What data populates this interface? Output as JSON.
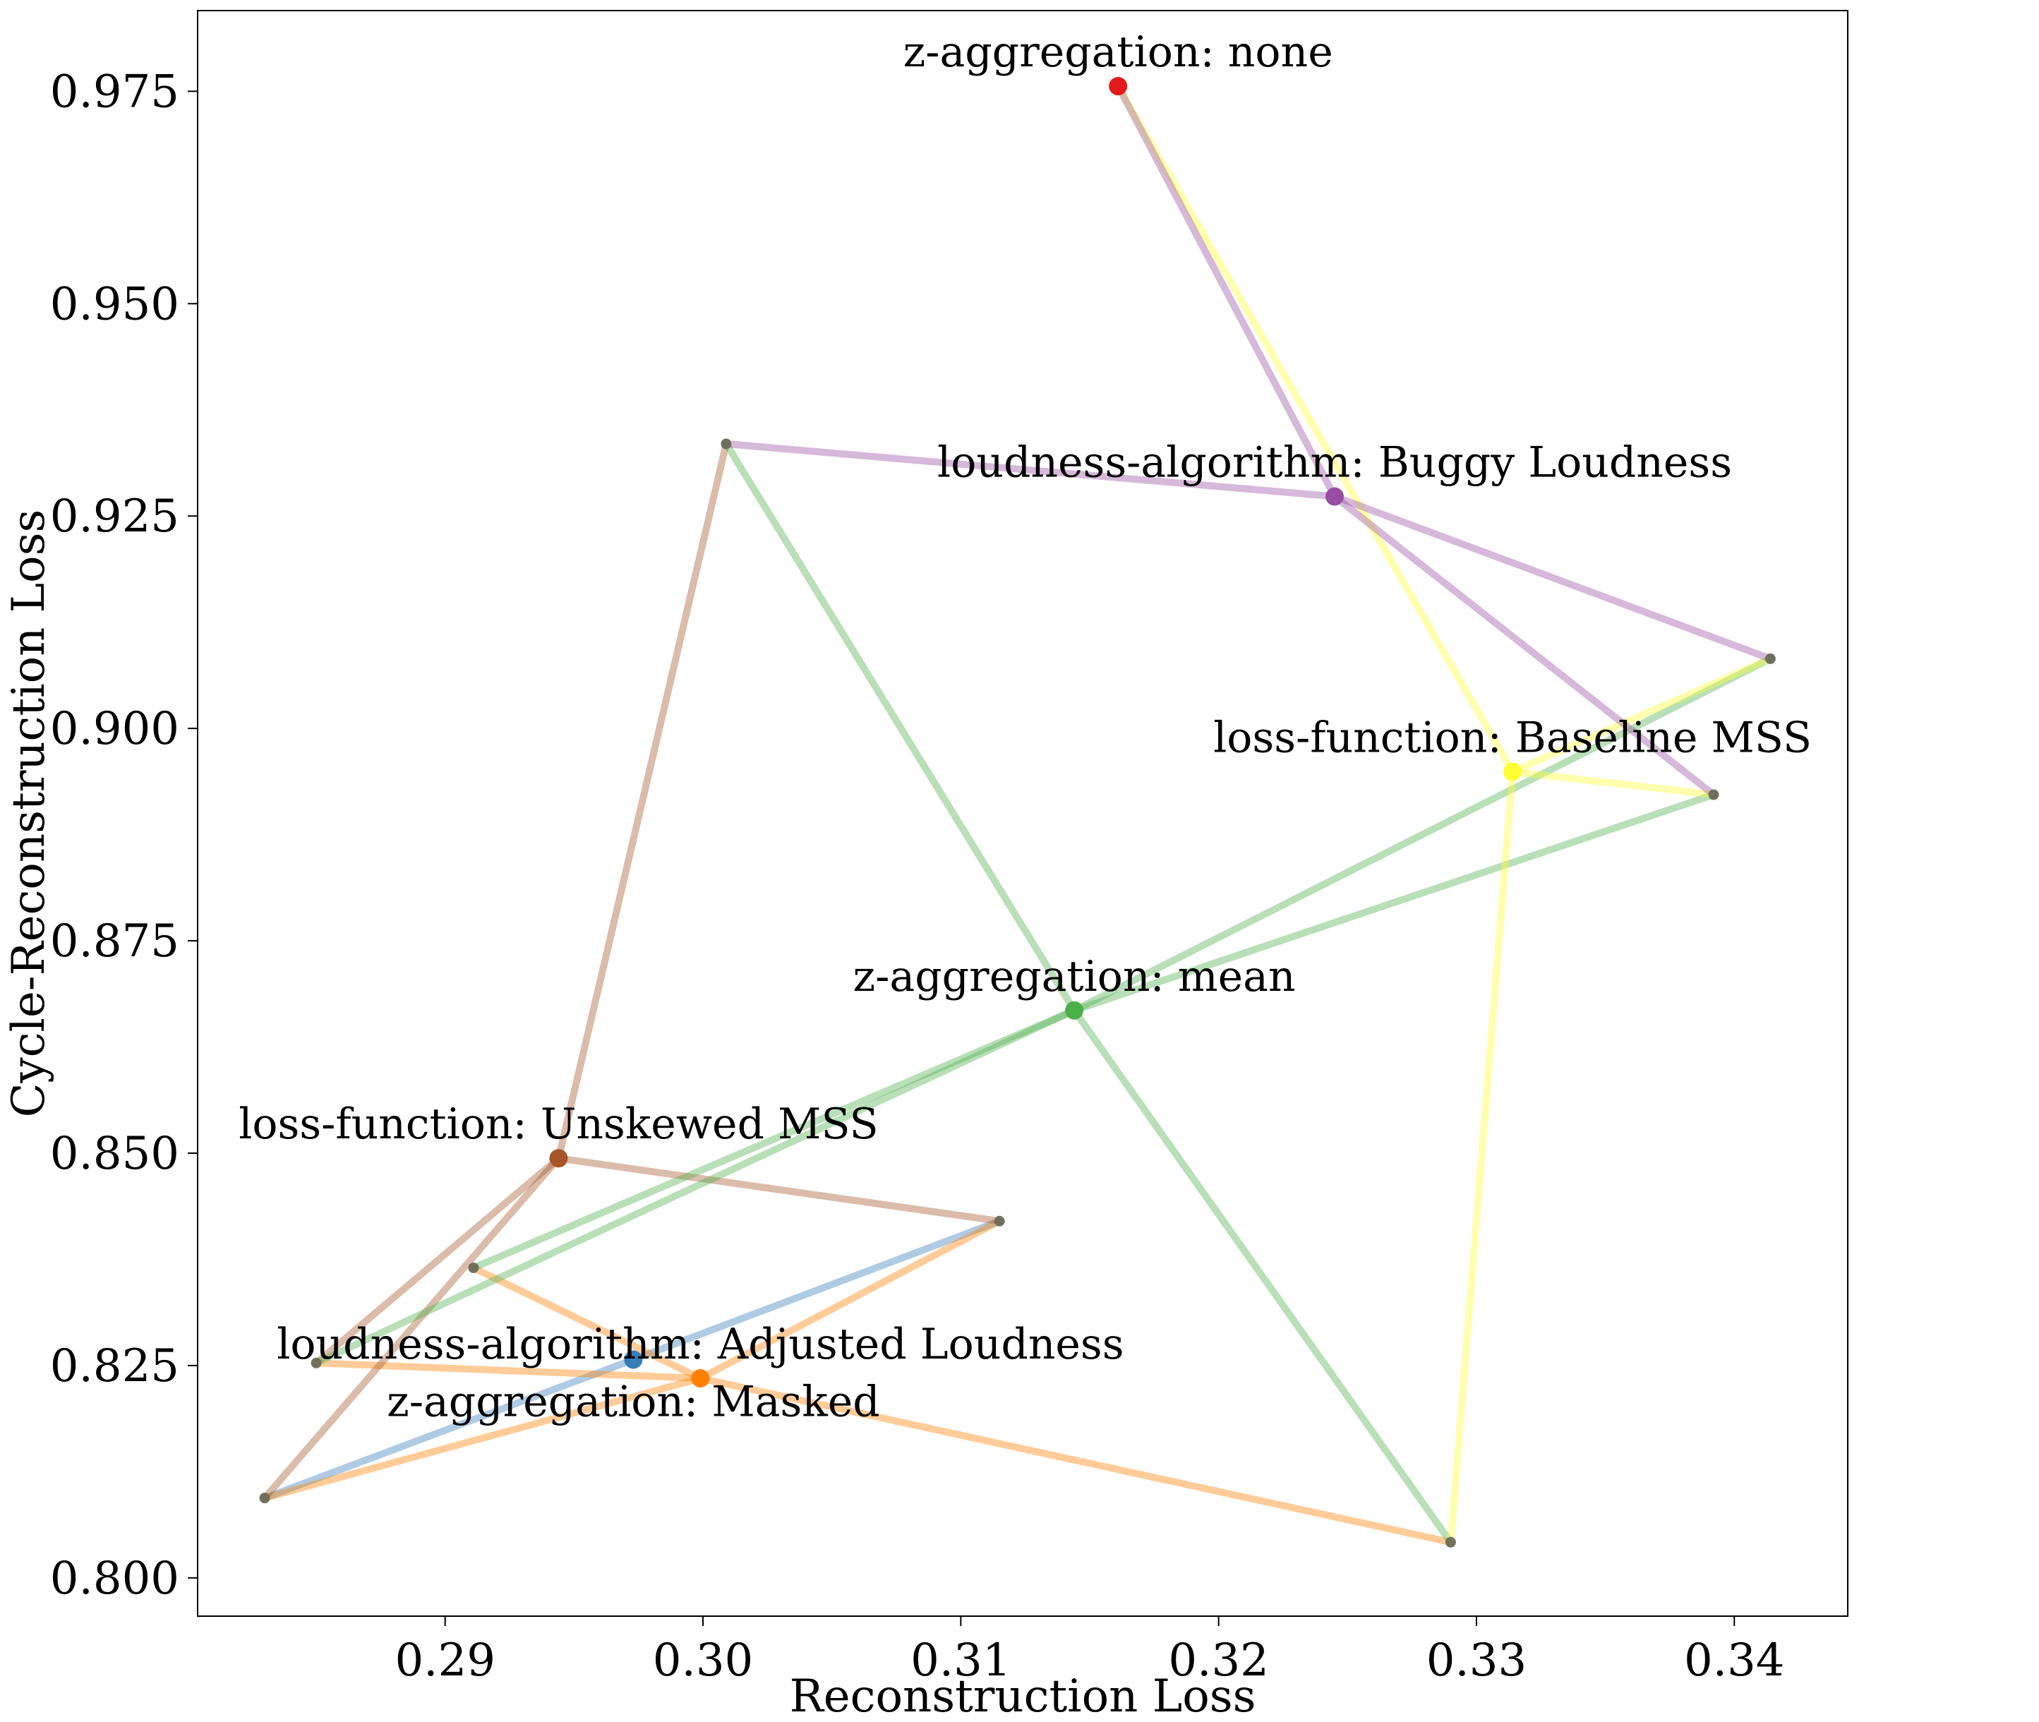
{
  "chart_data": {
    "type": "scatter",
    "title": "",
    "xlabel": "Reconstruction Loss",
    "ylabel": "Cycle-Reconstruction Loss",
    "xlim": [
      0.2804,
      0.3444
    ],
    "ylim": [
      0.7955,
      0.9845
    ],
    "x_ticks": [
      0.29,
      0.3,
      0.31,
      0.32,
      0.33,
      0.34
    ],
    "x_tick_labels": [
      "0.29",
      "0.30",
      "0.31",
      "0.32",
      "0.33",
      "0.34"
    ],
    "y_ticks": [
      0.8,
      0.825,
      0.85,
      0.875,
      0.9,
      0.925,
      0.95,
      0.975
    ],
    "y_tick_labels": [
      "0.800",
      "0.825",
      "0.850",
      "0.875",
      "0.900",
      "0.925",
      "0.950",
      "0.975"
    ],
    "grid": false,
    "legend": "none",
    "points": [
      {
        "x": 0.283,
        "y": 0.8094
      },
      {
        "x": 0.285,
        "y": 0.8253
      },
      {
        "x": 0.2911,
        "y": 0.8365
      },
      {
        "x": 0.3009,
        "y": 0.9335
      },
      {
        "x": 0.3115,
        "y": 0.842
      },
      {
        "x": 0.329,
        "y": 0.8042
      },
      {
        "x": 0.3392,
        "y": 0.8922
      },
      {
        "x": 0.3414,
        "y": 0.9082
      }
    ],
    "series": [
      {
        "label": "z-aggregation: Masked",
        "color": "#377eb8",
        "x": 0.2973,
        "y": 0.8257,
        "neighbors": [
          {
            "x": 0.283,
            "y": 0.8094
          },
          {
            "x": 0.3115,
            "y": 0.842
          }
        ],
        "label_anchor": "below"
      },
      {
        "label": "loudness-algorithm: Adjusted Loudness",
        "color": "#ff7f00",
        "x": 0.2999,
        "y": 0.8235,
        "neighbors": [
          {
            "x": 0.283,
            "y": 0.8094
          },
          {
            "x": 0.285,
            "y": 0.8253
          },
          {
            "x": 0.2911,
            "y": 0.8365
          },
          {
            "x": 0.3115,
            "y": 0.842
          },
          {
            "x": 0.329,
            "y": 0.8042
          }
        ],
        "label_anchor": "above"
      },
      {
        "label": "loss-function: Unskewed MSS",
        "color": "#a65628",
        "x": 0.2944,
        "y": 0.8494,
        "neighbors": [
          {
            "x": 0.283,
            "y": 0.8094
          },
          {
            "x": 0.285,
            "y": 0.8253
          },
          {
            "x": 0.3009,
            "y": 0.9335
          },
          {
            "x": 0.3115,
            "y": 0.842
          }
        ],
        "label_anchor": "above"
      },
      {
        "label": "z-aggregation: mean",
        "color": "#4daf4a",
        "x": 0.3144,
        "y": 0.8668,
        "neighbors": [
          {
            "x": 0.285,
            "y": 0.8253
          },
          {
            "x": 0.2911,
            "y": 0.8365
          },
          {
            "x": 0.3009,
            "y": 0.9335
          },
          {
            "x": 0.329,
            "y": 0.8042
          },
          {
            "x": 0.3392,
            "y": 0.8922
          },
          {
            "x": 0.3414,
            "y": 0.9082
          }
        ],
        "label_anchor": "above"
      },
      {
        "label": "loss-function: Baseline MSS",
        "color": "#ffff33",
        "x": 0.3314,
        "y": 0.8949,
        "neighbors": [
          {
            "x": 0.3161,
            "y": 0.9756
          },
          {
            "x": 0.329,
            "y": 0.8042
          },
          {
            "x": 0.3392,
            "y": 0.8922
          },
          {
            "x": 0.3414,
            "y": 0.9082
          }
        ],
        "label_anchor": "above"
      },
      {
        "label": "loudness-algorithm: Buggy Loudness",
        "color": "#984ea3",
        "x": 0.3245,
        "y": 0.9273,
        "neighbors": [
          {
            "x": 0.3161,
            "y": 0.9756
          },
          {
            "x": 0.3009,
            "y": 0.9335
          },
          {
            "x": 0.3414,
            "y": 0.9082
          },
          {
            "x": 0.3392,
            "y": 0.8922
          }
        ],
        "label_anchor": "above"
      },
      {
        "label": "z-aggregation: none",
        "color": "#e41a1c",
        "x": 0.3161,
        "y": 0.9756,
        "neighbors": [],
        "label_anchor": "above"
      }
    ]
  }
}
